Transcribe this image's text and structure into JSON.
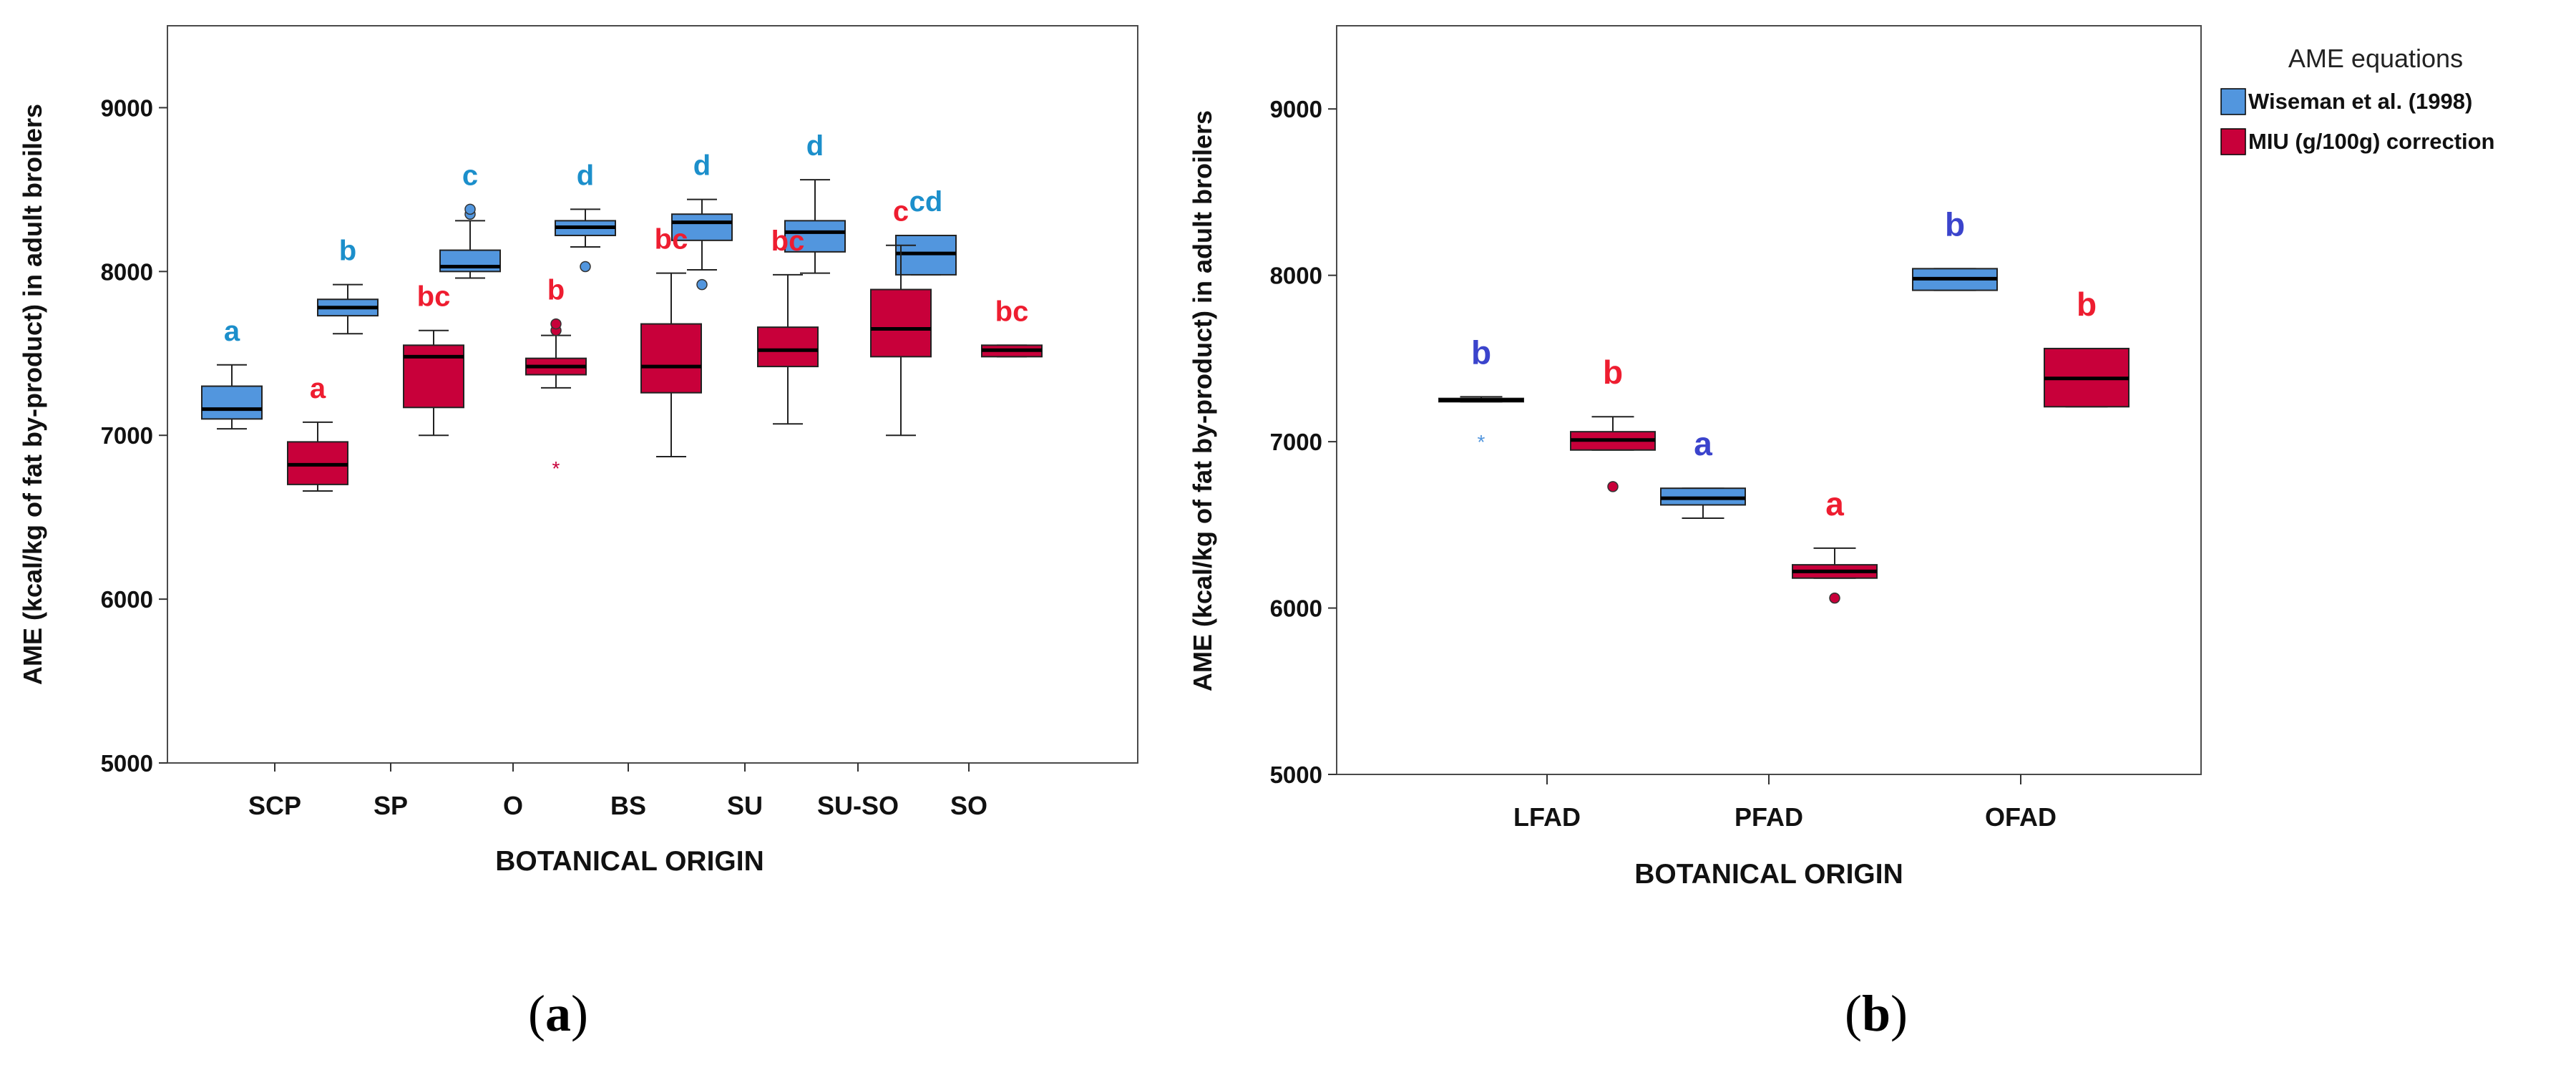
{
  "colors": {
    "blue": "#5296DE",
    "red": "#C8003A",
    "blue_letter_a": "#1C8FCB",
    "blue_letter_b": "#3B44CC",
    "red_letter": "#EE1D30",
    "frame": "#4a4a4a",
    "axis": "#333333",
    "median": "#000000"
  },
  "legend": {
    "title": "AME equations",
    "items": [
      {
        "label": "Wiseman et al. (1998)",
        "color": "#5296DE"
      },
      {
        "label": "MIU (g/100g) correction",
        "color": "#C8003A"
      }
    ]
  },
  "chart_data": [
    {
      "type": "boxplot",
      "panel_label": {
        "open": "(",
        "letter": "a",
        "close": ")"
      },
      "xlabel": "BOTANICAL ORIGIN",
      "ylabel": "AME (kcal/kg of fat by-product) in adult broilers",
      "ylim": [
        5000,
        9500
      ],
      "yticks": [
        5000,
        6000,
        7000,
        8000,
        9000
      ],
      "categories": [
        "SCP",
        "SP",
        "O",
        "BS",
        "SU",
        "SU-SO",
        "SO"
      ],
      "series": [
        {
          "name": "Wiseman et al. (1998)",
          "boxes": [
            {
              "min": 7040,
              "q1": 7100,
              "median": 7160,
              "q3": 7300,
              "max": 7430,
              "outliers": [],
              "letter": "a"
            },
            {
              "min": 7620,
              "q1": 7730,
              "median": 7780,
              "q3": 7830,
              "max": 7920,
              "outliers": [],
              "letter": "b"
            },
            {
              "min": 7960,
              "q1": 8000,
              "median": 8030,
              "q3": 8130,
              "max": 8310,
              "outliers": [
                8350,
                8380
              ],
              "letter": "c"
            },
            {
              "min": 8150,
              "q1": 8220,
              "median": 8270,
              "q3": 8310,
              "max": 8380,
              "outliers": [
                8030
              ],
              "letter": "d"
            },
            {
              "min": 8010,
              "q1": 8190,
              "median": 8300,
              "q3": 8350,
              "max": 8440,
              "outliers": [
                7920
              ],
              "letter": "d"
            },
            {
              "min": 7990,
              "q1": 8120,
              "median": 8240,
              "q3": 8310,
              "max": 8560,
              "outliers": [],
              "letter": "d"
            },
            {
              "min": 7980,
              "q1": 7980,
              "median": 8110,
              "q3": 8220,
              "max": 8220,
              "outliers": [],
              "letter": "cd"
            }
          ]
        },
        {
          "name": "MIU (g/100g) correction",
          "boxes": [
            {
              "min": 6660,
              "q1": 6700,
              "median": 6820,
              "q3": 6960,
              "max": 7080,
              "outliers": [],
              "letter": "a"
            },
            {
              "min": 7000,
              "q1": 7170,
              "median": 7480,
              "q3": 7550,
              "max": 7640,
              "outliers": [],
              "letter": "bc"
            },
            {
              "min": 7290,
              "q1": 7370,
              "median": 7420,
              "q3": 7470,
              "max": 7610,
              "outliers": [
                7640,
                7680
              ],
              "extremes": [
                6800
              ],
              "letter": "b"
            },
            {
              "min": 6870,
              "q1": 7260,
              "median": 7420,
              "q3": 7680,
              "max": 7990,
              "outliers": [],
              "letter": "bc"
            },
            {
              "min": 7070,
              "q1": 7420,
              "median": 7520,
              "q3": 7660,
              "max": 7980,
              "outliers": [],
              "letter": "bc"
            },
            {
              "min": 7000,
              "q1": 7480,
              "median": 7650,
              "q3": 7890,
              "max": 8160,
              "outliers": [],
              "letter": "c"
            },
            {
              "min": 7480,
              "q1": 7480,
              "median": 7520,
              "q3": 7550,
              "max": 7550,
              "outliers": [],
              "letter": "bc"
            }
          ]
        }
      ]
    },
    {
      "type": "boxplot",
      "panel_label": {
        "open": "(",
        "letter": "b",
        "close": ")"
      },
      "xlabel": "BOTANICAL ORIGIN",
      "ylabel": "AME (kcal/kg of fat by-product) in adult broilers",
      "ylim": [
        5000,
        9500
      ],
      "yticks": [
        5000,
        6000,
        7000,
        8000,
        9000
      ],
      "categories": [
        "LFAD",
        "PFAD",
        "OFAD"
      ],
      "series": [
        {
          "name": "Wiseman et al. (1998)",
          "boxes": [
            {
              "min": 7240,
              "q1": 7240,
              "median": 7250,
              "q3": 7260,
              "max": 7270,
              "outliers": [],
              "extremes": [
                7000
              ],
              "letter": "b"
            },
            {
              "min": 6540,
              "q1": 6620,
              "median": 6660,
              "q3": 6720,
              "max": 6720,
              "outliers": [],
              "letter": "a"
            },
            {
              "min": 7910,
              "q1": 7910,
              "median": 7980,
              "q3": 8040,
              "max": 8040,
              "outliers": [],
              "letter": "b"
            }
          ]
        },
        {
          "name": "MIU (g/100g) correction",
          "boxes": [
            {
              "min": 6950,
              "q1": 6950,
              "median": 7010,
              "q3": 7060,
              "max": 7150,
              "outliers": [
                6730
              ],
              "letter": "b"
            },
            {
              "min": 6180,
              "q1": 6180,
              "median": 6220,
              "q3": 6260,
              "max": 6360,
              "outliers": [
                6060
              ],
              "letter": "a"
            },
            {
              "min": 7210,
              "q1": 7210,
              "median": 7380,
              "q3": 7560,
              "max": 7560,
              "outliers": [],
              "letter": "b"
            }
          ]
        }
      ]
    }
  ]
}
